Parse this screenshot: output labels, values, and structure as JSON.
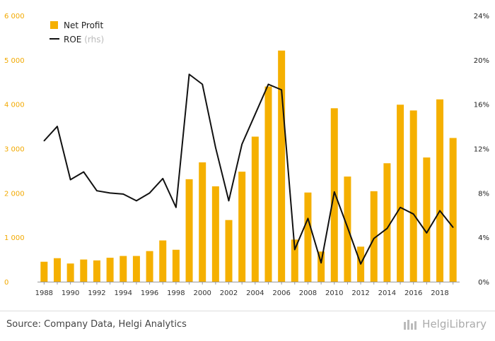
{
  "chart_data": {
    "type": "bar",
    "x": [
      1988,
      1989,
      1990,
      1991,
      1992,
      1993,
      1994,
      1995,
      1996,
      1997,
      1998,
      1999,
      2000,
      2001,
      2002,
      2003,
      2004,
      2005,
      2006,
      2007,
      2008,
      2009,
      2010,
      2011,
      2012,
      2013,
      2014,
      2015,
      2016,
      2017,
      2018,
      2019
    ],
    "x_tick_labels": [
      "1988",
      "1990",
      "1992",
      "1994",
      "1996",
      "1998",
      "2000",
      "2002",
      "2004",
      "2006",
      "2008",
      "2010",
      "2012",
      "2014",
      "2016",
      "2018"
    ],
    "series": [
      {
        "name": "Net Profit",
        "type": "bar",
        "axis": "left",
        "color": "#f5b000",
        "values": [
          450,
          530,
          410,
          500,
          480,
          540,
          580,
          580,
          690,
          930,
          720,
          2310,
          2690,
          2150,
          1390,
          2480,
          3270,
          4400,
          5210,
          950,
          2010,
          680,
          3910,
          2370,
          790,
          2040,
          2670,
          3990,
          3860,
          2800,
          4110,
          3240
        ]
      },
      {
        "name": "ROE",
        "name_suffix": "(rhs)",
        "type": "line",
        "axis": "right",
        "color": "#111111",
        "values": [
          12.7,
          14.0,
          9.2,
          9.9,
          8.2,
          8.0,
          7.9,
          7.3,
          8.0,
          9.3,
          6.7,
          18.7,
          17.8,
          12.1,
          7.3,
          12.4,
          15.1,
          17.8,
          17.3,
          2.9,
          5.7,
          1.7,
          8.1,
          4.9,
          1.6,
          3.9,
          4.8,
          6.7,
          6.1,
          4.4,
          6.4,
          4.9
        ]
      }
    ],
    "y_left": {
      "min": 0,
      "max": 6000,
      "ticks": [
        0,
        1000,
        2000,
        3000,
        4000,
        5000,
        6000
      ],
      "tick_labels": [
        "0",
        "1 000",
        "2 000",
        "3 000",
        "4 000",
        "5 000",
        "6 000"
      ]
    },
    "y_right": {
      "min": 0,
      "max": 24,
      "ticks": [
        0,
        4,
        8,
        12,
        16,
        20,
        24
      ],
      "tick_labels": [
        "0%",
        "4%",
        "8%",
        "12%",
        "16%",
        "20%",
        "24%"
      ]
    },
    "grid": false,
    "legend_position": "top-left"
  },
  "footer": {
    "source": "Source: Company Data, Helgi Analytics",
    "brand": "HelgiLibrary"
  }
}
